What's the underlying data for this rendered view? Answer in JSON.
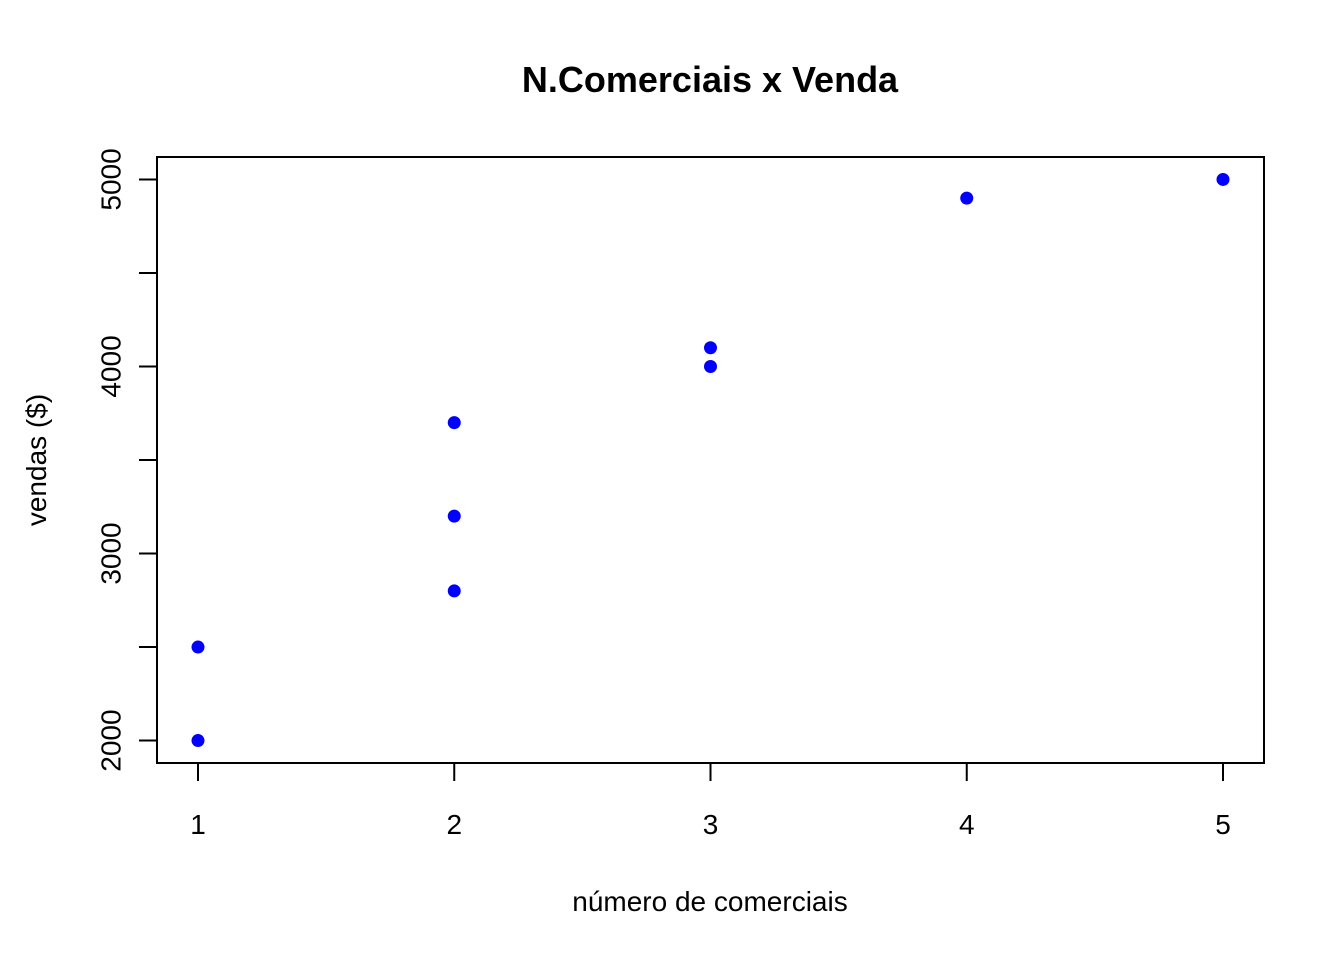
{
  "chart_data": {
    "type": "scatter",
    "title": "N.Comerciais x Venda",
    "xlabel": "número de comerciais",
    "ylabel": "vendas ($)",
    "xlim": [
      0.84,
      5.16
    ],
    "ylim": [
      1880,
      5120
    ],
    "xticks": [
      1,
      2,
      3,
      4,
      5
    ],
    "yticks": [
      2000,
      2500,
      3000,
      3500,
      4000,
      4500,
      5000
    ],
    "ytick_labels": [
      "2000",
      "",
      "3000",
      "",
      "4000",
      "",
      "5000"
    ],
    "grid": false,
    "point_color": "#0000ff",
    "points": [
      {
        "x": 1,
        "y": 2000
      },
      {
        "x": 1,
        "y": 2500
      },
      {
        "x": 2,
        "y": 2800
      },
      {
        "x": 2,
        "y": 3200
      },
      {
        "x": 2,
        "y": 3700
      },
      {
        "x": 3,
        "y": 4000
      },
      {
        "x": 3,
        "y": 4100
      },
      {
        "x": 4,
        "y": 4900
      },
      {
        "x": 5,
        "y": 5000
      }
    ]
  }
}
